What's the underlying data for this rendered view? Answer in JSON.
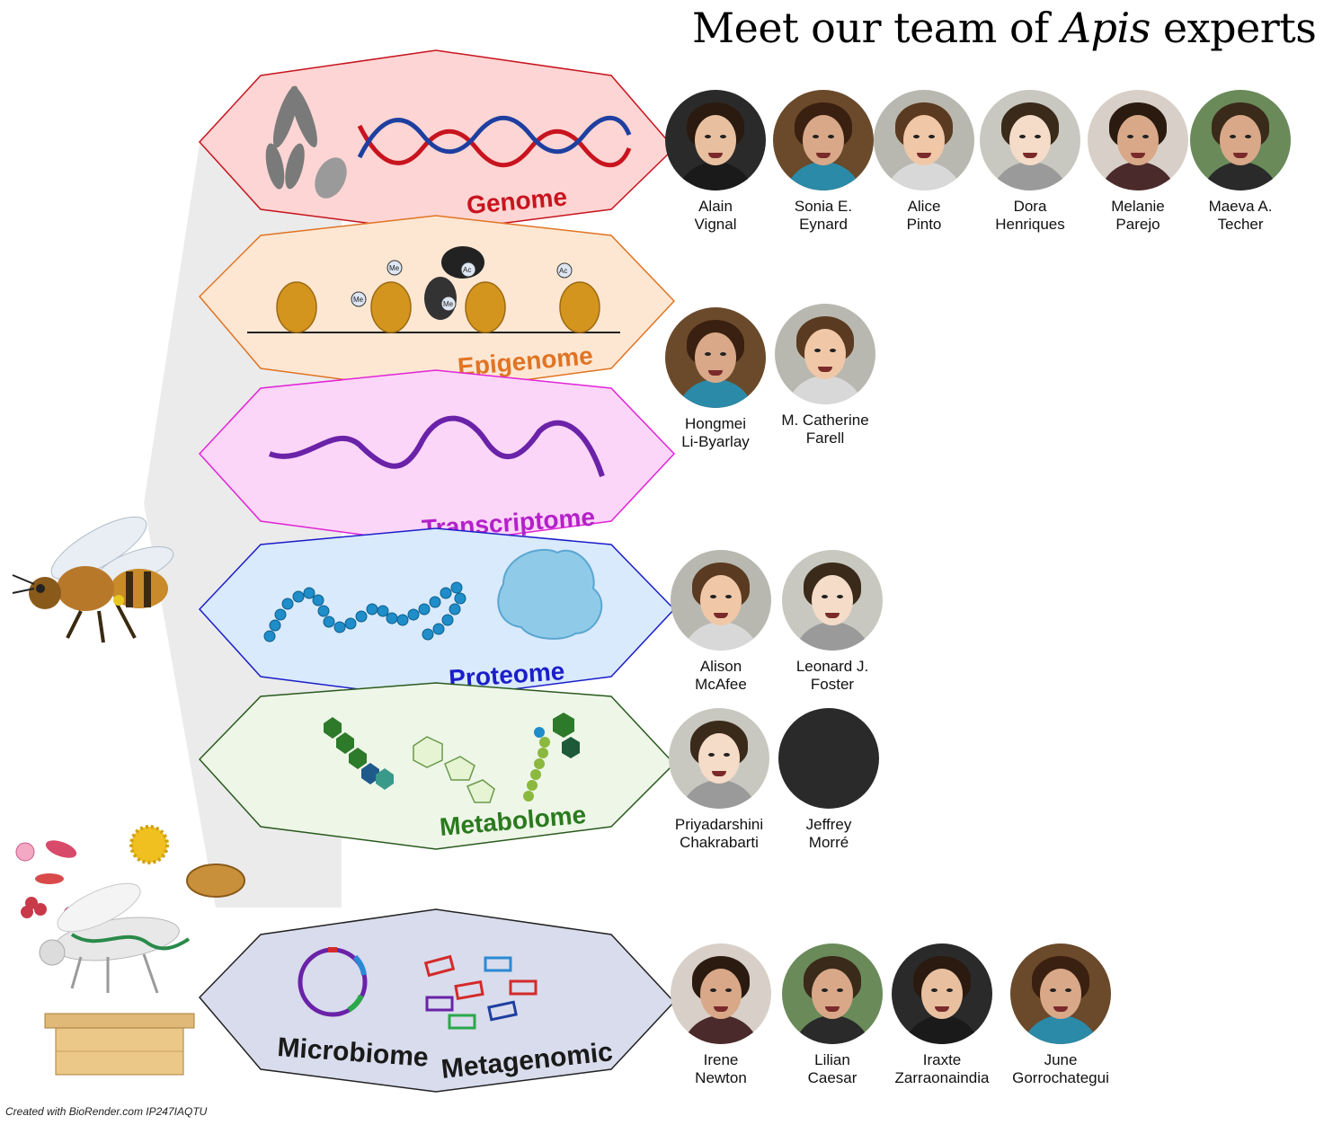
{
  "title": {
    "prefix": "Meet our team of ",
    "italic": "Apis",
    "suffix": " experts"
  },
  "layers": [
    {
      "label": "Genome",
      "color": "#c8141f"
    },
    {
      "label": "Epigenome",
      "color": "#e07424"
    },
    {
      "label": "Transcriptome",
      "color": "#b321c9"
    },
    {
      "label": "Proteome",
      "color": "#1c1ec9"
    },
    {
      "label": "Metabolome",
      "color": "#2a7a1e"
    }
  ],
  "microbiome_layer": {
    "label_left": "Microbiome",
    "label_right": "Metagenomic",
    "color": "#1a1a1a"
  },
  "nucleosome_marks": [
    "Me",
    "Me",
    "Ac",
    "Me",
    "Ac"
  ],
  "teams": {
    "genome": [
      {
        "first": "Alain",
        "last": "Vignal"
      },
      {
        "first": "Sonia E.",
        "last": "Eynard"
      },
      {
        "first": "Alice",
        "last": "Pinto"
      },
      {
        "first": "Dora",
        "last": "Henriques"
      },
      {
        "first": "Melanie",
        "last": "Parejo"
      },
      {
        "first": "Maeva A.",
        "last": "Techer"
      }
    ],
    "epigenome": [
      {
        "first": "Hongmei",
        "last": "Li-Byarlay"
      },
      {
        "first": "M. Catherine",
        "last": "Farell"
      }
    ],
    "proteome": [
      {
        "first": "Alison",
        "last": "McAfee"
      },
      {
        "first": "Leonard J.",
        "last": "Foster"
      }
    ],
    "metabolome": [
      {
        "first": "Priyadarshini",
        "last": "Chakrabarti"
      },
      {
        "first": "Jeffrey",
        "last": "Morré"
      }
    ],
    "microbiome": [
      {
        "first": "Irene",
        "last": "Newton"
      },
      {
        "first": "Lilian",
        "last": "Caesar"
      },
      {
        "first": "Iraxte",
        "last": "Zarraonaindia"
      },
      {
        "first": "June",
        "last": "Gorrochategui"
      }
    ]
  },
  "credit": "Created with BioRender.com IP247IAQTU"
}
